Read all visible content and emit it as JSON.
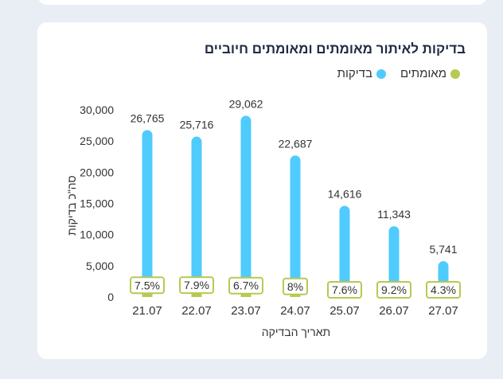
{
  "chart_data": {
    "type": "bar",
    "title": "בדיקות לאיתור מאומתים ומאומתים חיוביים",
    "xlabel": "תאריך הבדיקה",
    "ylabel": "סה\"כ בדיקות",
    "ylim": [
      0,
      30000
    ],
    "yticks": [
      0,
      5000,
      10000,
      15000,
      20000,
      25000,
      30000
    ],
    "ytick_labels": [
      "0",
      "5,000",
      "10,000",
      "15,000",
      "20,000",
      "25,000",
      "30,000"
    ],
    "categories": [
      "21.07",
      "22.07",
      "23.07",
      "24.07",
      "25.07",
      "26.07",
      "27.07"
    ],
    "legend_position": "top-right",
    "grid": false,
    "series": [
      {
        "name": "בדיקות",
        "color": "#50cbfd",
        "values": [
          26765,
          25716,
          29062,
          22687,
          14616,
          11343,
          5741
        ],
        "labels": [
          "26,765",
          "25,716",
          "29,062",
          "22,687",
          "14,616",
          "11,343",
          "5,741"
        ]
      },
      {
        "name": "מאומתים",
        "color": "#b6ca51",
        "values": [
          2007,
          2032,
          1947,
          1815,
          1111,
          1044,
          247
        ],
        "percent_labels": [
          "7.5%",
          "7.9%",
          "6.7%",
          "8%",
          "7.6%",
          "9.2%",
          "4.3%"
        ]
      }
    ]
  }
}
